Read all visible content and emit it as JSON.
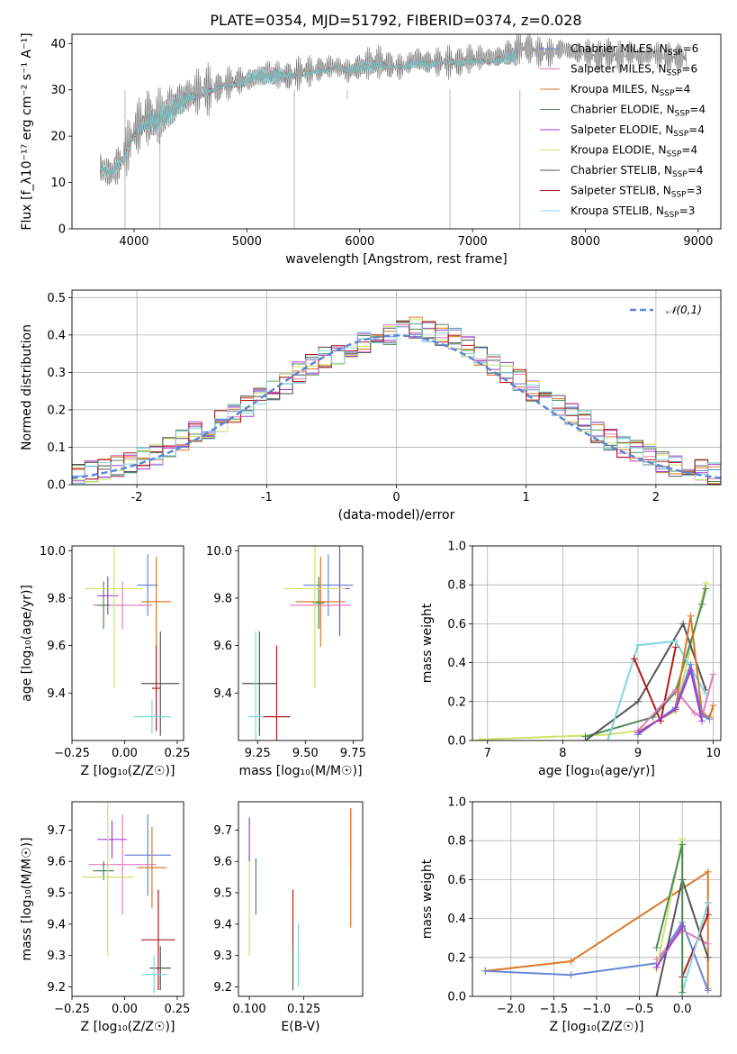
{
  "figure_title": "PLATE=0354, MJD=51792, FIBERID=0374, z=0.028",
  "series_colors": {
    "Chabrier MILES": "#6a86d5",
    "Salpeter MILES": "#e17eb8",
    "Kroupa MILES": "#d9792a",
    "Chabrier ELODIE": "#4e8a5a",
    "Salpeter ELODIE": "#a23bcf",
    "Kroupa ELODIE": "#cfe36a",
    "Chabrier STELIB": "#555555",
    "Salpeter STELIB": "#b51a1a",
    "Kroupa STELIB": "#7fd8dc"
  },
  "chart_data": [
    {
      "id": "spectrum",
      "type": "line",
      "xlabel": "wavelength [Angstrom, rest frame]",
      "ylabel": "Flux [f_λ10⁻¹⁷ erg cm⁻² s⁻¹ A⁻¹]",
      "xlim": [
        3450,
        9200
      ],
      "ylim": [
        0,
        42
      ],
      "xticks": [
        4000,
        5000,
        6000,
        7000,
        8000,
        9000
      ],
      "yticks": [
        0,
        10,
        20,
        30,
        40
      ],
      "grid": false,
      "legend_position": "right",
      "data_color": "#808080",
      "data_x": [
        3700,
        3800,
        3900,
        4000,
        4100,
        4200,
        4300,
        4400,
        4500,
        4600,
        4700,
        4800,
        4900,
        5000,
        5100,
        5200,
        5300,
        5400,
        5500,
        5600,
        5700,
        5800,
        5900,
        6000,
        6100,
        6200,
        6300,
        6400,
        6500,
        6600,
        6700,
        6800,
        6900,
        7000,
        7100,
        7200,
        7300,
        7400,
        7500,
        7600,
        7700,
        7800,
        7900,
        8000,
        8100,
        8200,
        8300,
        8400,
        8500,
        8600,
        8700,
        8800,
        8900
      ],
      "data_y": [
        13,
        12,
        15,
        21,
        24,
        24,
        26,
        28,
        29,
        30,
        30,
        31,
        32,
        32,
        33,
        34,
        33,
        33,
        34,
        34,
        35,
        35,
        34,
        35,
        36,
        36,
        35,
        35,
        37,
        36,
        36,
        36,
        36,
        37,
        37,
        37,
        38,
        39,
        39,
        38,
        38,
        39,
        38,
        38,
        37,
        38,
        37,
        38,
        37,
        38,
        37,
        37,
        37
      ],
      "model_x": [
        3700,
        3800,
        3900,
        4000,
        4100,
        4200,
        4300,
        4400,
        4500,
        4600,
        4700,
        4800,
        4900,
        5000,
        5100,
        5200,
        5300,
        5400,
        5500,
        5600,
        5700,
        5800,
        5900,
        6000,
        6100,
        6200,
        6300,
        6400,
        6500,
        6600,
        6700,
        6800,
        6900,
        7000,
        7100,
        7200,
        7300,
        7400
      ],
      "model_y": [
        13,
        12,
        15,
        20,
        23,
        23,
        25,
        27,
        28,
        29,
        30,
        31,
        31,
        32,
        33,
        33,
        33,
        33,
        33,
        34,
        34,
        35,
        34,
        35,
        35,
        35,
        35,
        35,
        36,
        35,
        36,
        36,
        36,
        36,
        36,
        36,
        37,
        37
      ],
      "series": [
        {
          "name": "Chabrier MILES, N_SSP=6"
        },
        {
          "name": "Salpeter MILES, N_SSP=6"
        },
        {
          "name": "Kroupa MILES, N_SSP=4"
        },
        {
          "name": "Chabrier ELODIE, N_SSP=4"
        },
        {
          "name": "Salpeter ELODIE, N_SSP=4"
        },
        {
          "name": "Kroupa ELODIE, N_SSP=4"
        },
        {
          "name": "Chabrier STELIB, N_SSP=4"
        },
        {
          "name": "Salpeter STELIB, N_SSP=3"
        },
        {
          "name": "Kroupa STELIB, N_SSP=3"
        }
      ]
    },
    {
      "id": "residuals",
      "type": "step",
      "xlabel": "(data-model)/error",
      "ylabel": "Normed distribution",
      "xlim": [
        -2.5,
        2.5
      ],
      "ylim": [
        0,
        0.52
      ],
      "xticks": [
        -2,
        -1,
        0,
        1,
        2
      ],
      "yticks": [
        0.0,
        0.1,
        0.2,
        0.3,
        0.4,
        0.5
      ],
      "grid": true,
      "legend_position": "top-right",
      "reference_curve": "𝒩(0,1)",
      "reference_color": "#5b87d6",
      "bin_edges": [
        -2.5,
        -2.4,
        -2.3,
        -2.2,
        -2.1,
        -2.0,
        -1.9,
        -1.8,
        -1.7,
        -1.6,
        -1.5,
        -1.4,
        -1.3,
        -1.2,
        -1.1,
        -1.0,
        -0.9,
        -0.8,
        -0.7,
        -0.6,
        -0.5,
        -0.4,
        -0.3,
        -0.2,
        -0.1,
        0.0,
        0.1,
        0.2,
        0.3,
        0.4,
        0.5,
        0.6,
        0.7,
        0.8,
        0.9,
        1.0,
        1.1,
        1.2,
        1.3,
        1.4,
        1.5,
        1.6,
        1.7,
        1.8,
        1.9,
        2.0,
        2.1,
        2.2,
        2.3,
        2.4,
        2.5
      ],
      "hist_base": [
        0.03,
        0.035,
        0.04,
        0.05,
        0.06,
        0.07,
        0.08,
        0.1,
        0.12,
        0.14,
        0.15,
        0.17,
        0.19,
        0.21,
        0.23,
        0.25,
        0.27,
        0.3,
        0.32,
        0.34,
        0.35,
        0.37,
        0.38,
        0.39,
        0.4,
        0.41,
        0.42,
        0.41,
        0.4,
        0.39,
        0.37,
        0.34,
        0.32,
        0.3,
        0.28,
        0.25,
        0.23,
        0.21,
        0.19,
        0.17,
        0.14,
        0.12,
        0.1,
        0.09,
        0.08,
        0.06,
        0.05,
        0.045,
        0.04,
        0.03
      ]
    },
    {
      "id": "age_vs_Z",
      "type": "errorbar",
      "xlabel": "Z [log₁₀(Z/Z☉)]",
      "ylabel": "age  [log₁₀(age/yr)]",
      "xlim": [
        -0.25,
        0.28
      ],
      "ylim": [
        9.2,
        10.02
      ],
      "xticks": [
        -0.25,
        0.0,
        0.25
      ],
      "xtick_labels": [
        "−0.25",
        "0.00",
        "0.25"
      ],
      "yticks": [
        9.4,
        9.6,
        9.8,
        10.0
      ],
      "grid": false,
      "points": [
        {
          "series": "Chabrier MILES",
          "x": 0.11,
          "y": 9.855,
          "xerr": 0.05,
          "yerr": 0.13
        },
        {
          "series": "Salpeter MILES",
          "x": -0.01,
          "y": 9.77,
          "xerr": 0.14,
          "yerr": 0.1
        },
        {
          "series": "Kroupa MILES",
          "x": 0.15,
          "y": 9.785,
          "xerr": 0.07,
          "yerr": 0.19
        },
        {
          "series": "Chabrier ELODIE",
          "x": -0.1,
          "y": 9.77,
          "xerr": 0.03,
          "yerr": 0.1
        },
        {
          "series": "Salpeter ELODIE",
          "x": -0.08,
          "y": 9.81,
          "xerr": 0.05,
          "yerr": 0.08
        },
        {
          "series": "Kroupa ELODIE",
          "x": -0.05,
          "y": 9.84,
          "xerr": 0.14,
          "yerr": 0.42
        },
        {
          "series": "Chabrier STELIB",
          "x": 0.17,
          "y": 9.44,
          "xerr": 0.09,
          "yerr": 0.22
        },
        {
          "series": "Salpeter STELIB",
          "x": 0.15,
          "y": 9.42,
          "xerr": 0.02,
          "yerr": 0.18
        },
        {
          "series": "Kroupa STELIB",
          "x": 0.13,
          "y": 9.3,
          "xerr": 0.09,
          "yerr": 0.07
        }
      ]
    },
    {
      "id": "age_vs_mass",
      "type": "errorbar",
      "xlabel": "mass [log₁₀(M/M☉)]",
      "ylabel": "",
      "xlim": [
        9.15,
        9.8
      ],
      "ylim": [
        9.2,
        10.02
      ],
      "xticks": [
        9.25,
        9.5,
        9.75
      ],
      "xtick_labels": [
        "9.25",
        "9.50",
        "9.75"
      ],
      "yticks": [
        9.4,
        9.6,
        9.8,
        10.0
      ],
      "grid": false,
      "points": [
        {
          "series": "Chabrier MILES",
          "x": 9.62,
          "y": 9.855,
          "xerr": 0.13,
          "yerr": 0.13
        },
        {
          "series": "Salpeter MILES",
          "x": 9.58,
          "y": 9.77,
          "xerr": 0.16,
          "yerr": 0.1
        },
        {
          "series": "Kroupa MILES",
          "x": 9.58,
          "y": 9.785,
          "xerr": 0.13,
          "yerr": 0.19
        },
        {
          "series": "Chabrier ELODIE",
          "x": 9.57,
          "y": 9.78,
          "xerr": 0.03,
          "yerr": 0.11
        },
        {
          "series": "Salpeter ELODIE",
          "x": 9.68,
          "y": 9.84,
          "xerr": 0.05,
          "yerr": 0.2
        },
        {
          "series": "Kroupa ELODIE",
          "x": 9.55,
          "y": 9.84,
          "xerr": 0.16,
          "yerr": 0.42
        },
        {
          "series": "Chabrier STELIB",
          "x": 9.26,
          "y": 9.44,
          "xerr": 0.09,
          "yerr": 0.22
        },
        {
          "series": "Salpeter STELIB",
          "x": 9.35,
          "y": 9.3,
          "xerr": 0.07,
          "yerr": 0.3
        },
        {
          "series": "Kroupa STELIB",
          "x": 9.24,
          "y": 9.3,
          "xerr": 0.04,
          "yerr": 0.36
        }
      ]
    },
    {
      "id": "mass_weight_vs_age",
      "type": "line",
      "xlabel": "age  [log₁₀(age/yr)]",
      "ylabel": "mass weight",
      "xlim": [
        6.8,
        10.1
      ],
      "ylim": [
        0,
        1.0
      ],
      "xticks": [
        7,
        8,
        9,
        10
      ],
      "yticks": [
        0.0,
        0.2,
        0.4,
        0.6,
        0.8,
        1.0
      ],
      "grid": true,
      "series": [
        {
          "name": "Kroupa ELODIE",
          "x": [
            6.9,
            8.6,
            9.0,
            9.5,
            9.9
          ],
          "y": [
            0.005,
            0.03,
            0.05,
            0.15,
            0.81
          ]
        },
        {
          "name": "Chabrier ELODIE",
          "x": [
            8.3,
            9.2,
            9.5,
            9.85,
            9.9
          ],
          "y": [
            0.02,
            0.12,
            0.25,
            0.7,
            0.78
          ]
        },
        {
          "name": "Chabrier STELIB",
          "x": [
            8.3,
            9.0,
            9.6,
            9.9
          ],
          "y": [
            0.0,
            0.2,
            0.6,
            0.26
          ]
        },
        {
          "name": "Kroupa STELIB",
          "x": [
            8.6,
            9.0,
            9.5,
            9.9
          ],
          "y": [
            0.0,
            0.49,
            0.51,
            0.24
          ]
        },
        {
          "name": "Salpeter STELIB",
          "x": [
            8.95,
            9.3,
            9.5
          ],
          "y": [
            0.42,
            0.1,
            0.48
          ]
        },
        {
          "name": "Salpeter MILES",
          "x": [
            9.0,
            9.5,
            9.75,
            9.85,
            10.0
          ],
          "y": [
            0.05,
            0.26,
            0.14,
            0.12,
            0.34
          ]
        },
        {
          "name": "Kroupa MILES",
          "x": [
            9.5,
            9.7,
            9.85,
            9.95,
            10.0
          ],
          "y": [
            0.17,
            0.64,
            0.14,
            0.12,
            0.18
          ]
        },
        {
          "name": "Chabrier MILES",
          "x": [
            9.0,
            9.5,
            9.7,
            9.85,
            9.95
          ],
          "y": [
            0.03,
            0.17,
            0.39,
            0.13,
            0.11
          ]
        },
        {
          "name": "Salpeter ELODIE",
          "x": [
            9.0,
            9.5,
            9.7,
            9.85
          ],
          "y": [
            0.04,
            0.16,
            0.36,
            0.1
          ]
        }
      ]
    },
    {
      "id": "mass_vs_Z",
      "type": "errorbar",
      "xlabel": "Z [log₁₀(Z/Z☉)]",
      "ylabel": "mass [log₁₀(M/M☉)]",
      "xlim": [
        -0.25,
        0.28
      ],
      "ylim": [
        9.17,
        9.79
      ],
      "xticks": [
        -0.25,
        0.0,
        0.25
      ],
      "xtick_labels": [
        "−0.25",
        "0.00",
        "0.25"
      ],
      "yticks": [
        9.2,
        9.3,
        9.4,
        9.5,
        9.6,
        9.7
      ],
      "grid": false,
      "points": [
        {
          "series": "Chabrier MILES",
          "x": 0.11,
          "y": 9.62,
          "xerr": 0.11,
          "yerr": 0.13
        },
        {
          "series": "Salpeter MILES",
          "x": -0.01,
          "y": 9.59,
          "xerr": 0.16,
          "yerr": 0.16
        },
        {
          "series": "Kroupa MILES",
          "x": 0.13,
          "y": 9.58,
          "xerr": 0.07,
          "yerr": 0.13
        },
        {
          "series": "Chabrier ELODIE",
          "x": -0.1,
          "y": 9.57,
          "xerr": 0.05,
          "yerr": 0.03
        },
        {
          "series": "Salpeter ELODIE",
          "x": -0.06,
          "y": 9.67,
          "xerr": 0.07,
          "yerr": 0.06
        },
        {
          "series": "Kroupa ELODIE",
          "x": -0.08,
          "y": 9.55,
          "xerr": 0.12,
          "yerr": 0.25
        },
        {
          "series": "Chabrier STELIB",
          "x": 0.17,
          "y": 9.26,
          "xerr": 0.05,
          "yerr": 0.07
        },
        {
          "series": "Salpeter STELIB",
          "x": 0.16,
          "y": 9.35,
          "xerr": 0.08,
          "yerr": 0.16
        },
        {
          "series": "Kroupa STELIB",
          "x": 0.14,
          "y": 9.24,
          "xerr": 0.06,
          "yerr": 0.06
        }
      ]
    },
    {
      "id": "mass_vs_ebv",
      "type": "errorbar",
      "xlabel": "E(B-V)",
      "ylabel": "",
      "xlim": [
        0.095,
        0.152
      ],
      "ylim": [
        9.17,
        9.79
      ],
      "xticks": [
        0.1,
        0.125
      ],
      "xtick_labels": [
        "0.100",
        "0.125"
      ],
      "yticks": [
        9.2,
        9.3,
        9.4,
        9.5,
        9.6,
        9.7
      ],
      "grid": false,
      "points": [
        {
          "series": "Salpeter ELODIE",
          "x": 0.1,
          "y": 9.67,
          "xerr": 0.0,
          "yerr": 0.07
        },
        {
          "series": "Kroupa ELODIE",
          "x": 0.1,
          "y": 9.45,
          "xerr": 0.0,
          "yerr": 0.15
        },
        {
          "series": "Chabrier ELODIE",
          "x": 0.103,
          "y": 9.52,
          "xerr": 0.0,
          "yerr": 0.09
        },
        {
          "series": "Salpeter STELIB",
          "x": 0.12,
          "y": 9.42,
          "xerr": 0.0,
          "yerr": 0.09
        },
        {
          "series": "Chabrier STELIB",
          "x": 0.12,
          "y": 9.26,
          "xerr": 0.0,
          "yerr": 0.07
        },
        {
          "series": "Kroupa STELIB",
          "x": 0.1225,
          "y": 9.3,
          "xerr": 0.0,
          "yerr": 0.1
        },
        {
          "series": "Salpeter MILES",
          "x": 0.1465,
          "y": 9.67,
          "xerr": 0.0,
          "yerr": 0.09
        },
        {
          "series": "Kroupa MILES",
          "x": 0.1465,
          "y": 9.58,
          "xerr": 0.0,
          "yerr": 0.19
        }
      ]
    },
    {
      "id": "mass_weight_vs_Z",
      "type": "line",
      "xlabel": "Z [log₁₀(Z/Z☉)]",
      "ylabel": "mass weight",
      "xlim": [
        -2.45,
        0.45
      ],
      "ylim": [
        0,
        1.0
      ],
      "xticks": [
        -2.0,
        -1.5,
        -1.0,
        -0.5,
        0.0
      ],
      "xtick_labels": [
        "−2.0",
        "−1.5",
        "−1.0",
        "−0.5",
        "0.0"
      ],
      "yticks": [
        0.0,
        0.2,
        0.4,
        0.6,
        0.8,
        1.0
      ],
      "grid": true,
      "series": [
        {
          "name": "Kroupa MILES",
          "x": [
            -2.3,
            -1.3,
            0.3,
            0.3
          ],
          "y": [
            0.13,
            0.18,
            0.64,
            0.04
          ]
        },
        {
          "name": "Chabrier MILES",
          "x": [
            -2.3,
            -1.3,
            -0.3,
            0.0,
            0.3
          ],
          "y": [
            0.13,
            0.11,
            0.17,
            0.38,
            0.03
          ]
        },
        {
          "name": "Salpeter MILES",
          "x": [
            -0.3,
            0.0,
            0.3
          ],
          "y": [
            0.19,
            0.34,
            0.27
          ]
        },
        {
          "name": "Chabrier STELIB",
          "x": [
            -0.3,
            0.0,
            0.3
          ],
          "y": [
            0.0,
            0.6,
            0.2
          ]
        },
        {
          "name": "Salpeter STELIB",
          "x": [
            0.0,
            0.3,
            0.3
          ],
          "y": [
            0.1,
            0.42,
            0.48
          ]
        },
        {
          "name": "Kroupa STELIB",
          "x": [
            0.0,
            0.3
          ],
          "y": [
            0.02,
            0.48
          ]
        },
        {
          "name": "Kroupa ELODIE",
          "x": [
            -0.3,
            0.0,
            0.0
          ],
          "y": [
            0.14,
            0.81,
            0.05
          ]
        },
        {
          "name": "Chabrier ELODIE",
          "x": [
            -0.3,
            0.0,
            0.0
          ],
          "y": [
            0.25,
            0.78,
            0.02
          ]
        },
        {
          "name": "Salpeter ELODIE",
          "x": [
            -0.3,
            0.0
          ],
          "y": [
            0.15,
            0.36
          ]
        }
      ]
    }
  ]
}
